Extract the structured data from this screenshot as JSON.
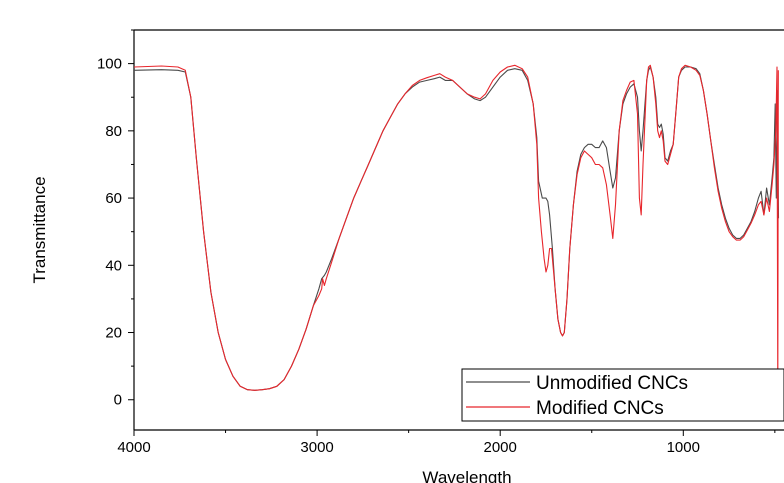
{
  "chart_data": {
    "type": "line",
    "title": "",
    "xlabel": "Wavelength",
    "ylabel": "Transmittance",
    "xlim": [
      4000,
      450
    ],
    "ylim": [
      -9,
      110
    ],
    "x_reversed": true,
    "x_ticks": [
      4000,
      3000,
      2000,
      1000
    ],
    "x_tick_labels": [
      "4000",
      "3000",
      "2000",
      "1000"
    ],
    "y_ticks": [
      0,
      20,
      40,
      60,
      80,
      100
    ],
    "y_tick_labels": [
      "0",
      "20",
      "40",
      "60",
      "80",
      "100"
    ],
    "legend_position": "bottom-right",
    "grid": false,
    "series": [
      {
        "name": "Unmodified CNCs",
        "color": "#4a4a4a",
        "points": [
          [
            4000,
            98
          ],
          [
            3850,
            98.2
          ],
          [
            3760,
            98
          ],
          [
            3720,
            97.5
          ],
          [
            3690,
            90
          ],
          [
            3660,
            72
          ],
          [
            3620,
            50
          ],
          [
            3580,
            32
          ],
          [
            3540,
            20
          ],
          [
            3500,
            12
          ],
          [
            3460,
            7
          ],
          [
            3420,
            4
          ],
          [
            3380,
            3
          ],
          [
            3340,
            2.8
          ],
          [
            3300,
            3
          ],
          [
            3260,
            3.3
          ],
          [
            3220,
            4
          ],
          [
            3180,
            6
          ],
          [
            3140,
            10
          ],
          [
            3100,
            15
          ],
          [
            3060,
            21
          ],
          [
            3020,
            28
          ],
          [
            2990,
            33
          ],
          [
            2975,
            36
          ],
          [
            2960,
            37
          ],
          [
            2950,
            38
          ],
          [
            2920,
            42
          ],
          [
            2880,
            48
          ],
          [
            2840,
            54
          ],
          [
            2800,
            60
          ],
          [
            2760,
            65
          ],
          [
            2720,
            70
          ],
          [
            2680,
            75
          ],
          [
            2640,
            80
          ],
          [
            2600,
            84
          ],
          [
            2560,
            88
          ],
          [
            2520,
            91
          ],
          [
            2480,
            93
          ],
          [
            2440,
            94.5
          ],
          [
            2400,
            95
          ],
          [
            2360,
            95.5
          ],
          [
            2330,
            96
          ],
          [
            2300,
            95
          ],
          [
            2260,
            95
          ],
          [
            2220,
            93
          ],
          [
            2180,
            91
          ],
          [
            2140,
            89.5
          ],
          [
            2110,
            89
          ],
          [
            2080,
            90
          ],
          [
            2040,
            93
          ],
          [
            2000,
            96
          ],
          [
            1960,
            98
          ],
          [
            1920,
            98.5
          ],
          [
            1880,
            98
          ],
          [
            1850,
            95
          ],
          [
            1820,
            88
          ],
          [
            1800,
            78
          ],
          [
            1790,
            65
          ],
          [
            1770,
            60
          ],
          [
            1750,
            60
          ],
          [
            1740,
            59
          ],
          [
            1730,
            55
          ],
          [
            1715,
            45
          ],
          [
            1700,
            33
          ],
          [
            1685,
            24
          ],
          [
            1670,
            20
          ],
          [
            1660,
            19
          ],
          [
            1650,
            20
          ],
          [
            1635,
            30
          ],
          [
            1620,
            45
          ],
          [
            1600,
            58
          ],
          [
            1580,
            68
          ],
          [
            1560,
            73
          ],
          [
            1540,
            75
          ],
          [
            1520,
            76
          ],
          [
            1500,
            76
          ],
          [
            1480,
            75
          ],
          [
            1460,
            75
          ],
          [
            1440,
            77
          ],
          [
            1420,
            75
          ],
          [
            1400,
            68
          ],
          [
            1385,
            63
          ],
          [
            1370,
            66
          ],
          [
            1350,
            80
          ],
          [
            1330,
            88
          ],
          [
            1310,
            91
          ],
          [
            1290,
            93
          ],
          [
            1270,
            94
          ],
          [
            1250,
            90
          ],
          [
            1240,
            80
          ],
          [
            1230,
            74
          ],
          [
            1220,
            80
          ],
          [
            1200,
            95
          ],
          [
            1190,
            98
          ],
          [
            1180,
            99
          ],
          [
            1165,
            96
          ],
          [
            1150,
            90
          ],
          [
            1140,
            82
          ],
          [
            1130,
            81
          ],
          [
            1120,
            82
          ],
          [
            1110,
            79
          ],
          [
            1100,
            72
          ],
          [
            1085,
            71
          ],
          [
            1070,
            74
          ],
          [
            1055,
            76
          ],
          [
            1040,
            86
          ],
          [
            1025,
            96
          ],
          [
            1010,
            98
          ],
          [
            990,
            99
          ],
          [
            960,
            99
          ],
          [
            930,
            98.5
          ],
          [
            910,
            97
          ],
          [
            890,
            92
          ],
          [
            870,
            85
          ],
          [
            850,
            77
          ],
          [
            830,
            70
          ],
          [
            810,
            63
          ],
          [
            790,
            58
          ],
          [
            770,
            54
          ],
          [
            750,
            51
          ],
          [
            730,
            49
          ],
          [
            710,
            48
          ],
          [
            690,
            48
          ],
          [
            670,
            49
          ],
          [
            650,
            51
          ],
          [
            630,
            53
          ],
          [
            610,
            56
          ],
          [
            590,
            60
          ],
          [
            575,
            62
          ],
          [
            560,
            55
          ],
          [
            545,
            63
          ],
          [
            530,
            58
          ],
          [
            515,
            66
          ],
          [
            505,
            72
          ],
          [
            498,
            88
          ],
          [
            492,
            60
          ],
          [
            486,
            92
          ],
          [
            480,
            54
          ]
        ]
      },
      {
        "name": "Modified CNCs",
        "color": "#e8262c",
        "points": [
          [
            4000,
            99
          ],
          [
            3850,
            99.3
          ],
          [
            3760,
            99
          ],
          [
            3720,
            98
          ],
          [
            3690,
            90
          ],
          [
            3660,
            72
          ],
          [
            3620,
            50
          ],
          [
            3580,
            32
          ],
          [
            3540,
            20
          ],
          [
            3500,
            12
          ],
          [
            3460,
            7
          ],
          [
            3420,
            4
          ],
          [
            3380,
            3
          ],
          [
            3340,
            2.8
          ],
          [
            3300,
            3
          ],
          [
            3260,
            3.3
          ],
          [
            3220,
            4
          ],
          [
            3180,
            6
          ],
          [
            3140,
            10
          ],
          [
            3100,
            15
          ],
          [
            3060,
            21
          ],
          [
            3020,
            28
          ],
          [
            2990,
            31
          ],
          [
            2975,
            33
          ],
          [
            2970,
            36
          ],
          [
            2960,
            34
          ],
          [
            2950,
            36
          ],
          [
            2920,
            41
          ],
          [
            2880,
            48
          ],
          [
            2840,
            54
          ],
          [
            2800,
            60
          ],
          [
            2760,
            65
          ],
          [
            2720,
            70
          ],
          [
            2680,
            75
          ],
          [
            2640,
            80
          ],
          [
            2600,
            84
          ],
          [
            2560,
            88
          ],
          [
            2520,
            91
          ],
          [
            2480,
            93.5
          ],
          [
            2440,
            95
          ],
          [
            2400,
            95.8
          ],
          [
            2360,
            96.5
          ],
          [
            2330,
            97
          ],
          [
            2300,
            96
          ],
          [
            2260,
            95
          ],
          [
            2220,
            93
          ],
          [
            2180,
            91
          ],
          [
            2140,
            90
          ],
          [
            2110,
            89.5
          ],
          [
            2080,
            91
          ],
          [
            2040,
            95
          ],
          [
            2000,
            97.5
          ],
          [
            1960,
            99
          ],
          [
            1920,
            99.5
          ],
          [
            1880,
            98.5
          ],
          [
            1850,
            96
          ],
          [
            1820,
            88
          ],
          [
            1800,
            76
          ],
          [
            1790,
            60
          ],
          [
            1775,
            50
          ],
          [
            1760,
            42
          ],
          [
            1750,
            38
          ],
          [
            1740,
            40
          ],
          [
            1730,
            45
          ],
          [
            1720,
            45
          ],
          [
            1715,
            42
          ],
          [
            1700,
            33
          ],
          [
            1685,
            24
          ],
          [
            1670,
            20
          ],
          [
            1660,
            19
          ],
          [
            1650,
            20
          ],
          [
            1635,
            30
          ],
          [
            1620,
            45
          ],
          [
            1600,
            58
          ],
          [
            1580,
            67
          ],
          [
            1560,
            72
          ],
          [
            1540,
            74
          ],
          [
            1520,
            73
          ],
          [
            1500,
            72
          ],
          [
            1480,
            70
          ],
          [
            1460,
            70
          ],
          [
            1440,
            69
          ],
          [
            1420,
            64
          ],
          [
            1400,
            55
          ],
          [
            1385,
            48
          ],
          [
            1370,
            58
          ],
          [
            1350,
            80
          ],
          [
            1330,
            89
          ],
          [
            1310,
            92
          ],
          [
            1290,
            94.5
          ],
          [
            1270,
            95
          ],
          [
            1250,
            85
          ],
          [
            1240,
            60
          ],
          [
            1230,
            55
          ],
          [
            1220,
            70
          ],
          [
            1200,
            95
          ],
          [
            1190,
            99
          ],
          [
            1180,
            99.5
          ],
          [
            1165,
            96
          ],
          [
            1150,
            88
          ],
          [
            1140,
            80
          ],
          [
            1130,
            78
          ],
          [
            1120,
            80
          ],
          [
            1110,
            77
          ],
          [
            1100,
            71
          ],
          [
            1085,
            70
          ],
          [
            1070,
            73
          ],
          [
            1055,
            76
          ],
          [
            1040,
            86
          ],
          [
            1025,
            96
          ],
          [
            1010,
            98.5
          ],
          [
            990,
            99.5
          ],
          [
            960,
            99
          ],
          [
            930,
            98
          ],
          [
            910,
            96.5
          ],
          [
            890,
            92
          ],
          [
            870,
            85
          ],
          [
            850,
            77
          ],
          [
            830,
            69
          ],
          [
            810,
            62
          ],
          [
            790,
            57
          ],
          [
            770,
            53
          ],
          [
            750,
            50
          ],
          [
            730,
            48.5
          ],
          [
            710,
            47.5
          ],
          [
            690,
            47.5
          ],
          [
            670,
            48.5
          ],
          [
            650,
            50.5
          ],
          [
            630,
            52.5
          ],
          [
            610,
            55
          ],
          [
            590,
            58
          ],
          [
            575,
            59
          ],
          [
            560,
            55
          ],
          [
            545,
            60
          ],
          [
            530,
            56
          ],
          [
            515,
            64
          ],
          [
            505,
            70
          ],
          [
            495,
            80
          ],
          [
            488,
            99
          ],
          [
            484,
            1
          ],
          [
            481,
            98
          ]
        ]
      }
    ]
  }
}
